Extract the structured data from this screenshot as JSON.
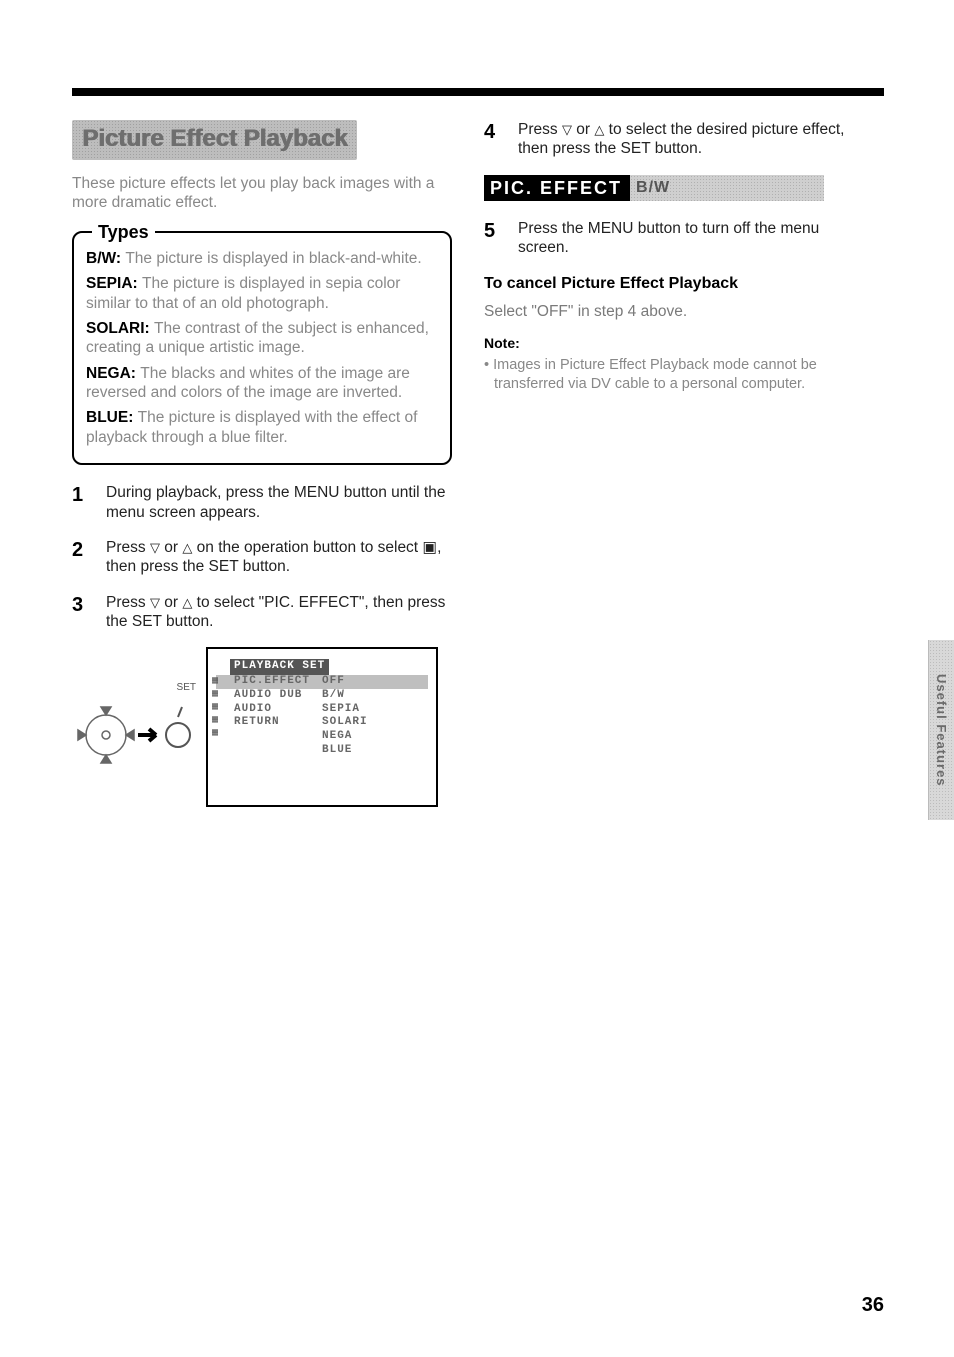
{
  "section_title": "Picture Effect Playback",
  "intro": "These picture effects let you play back images with a more dramatic effect.",
  "types_label": "Types",
  "types": [
    {
      "name": "B/W:",
      "desc": "The picture is displayed in black-and-white."
    },
    {
      "name": "SEPIA:",
      "desc": "The picture is displayed in sepia color similar to that of an old photograph."
    },
    {
      "name": "SOLARI:",
      "desc": "The contrast of the subject is enhanced, creating a unique artistic image."
    },
    {
      "name": "NEGA:",
      "desc": "The blacks and whites of the image are reversed and colors of the image are inverted."
    },
    {
      "name": "BLUE:",
      "desc": "The picture is displayed with the effect of playback through a blue filter."
    }
  ],
  "steps_left": [
    {
      "n": "1",
      "text": "During playback, press the MENU button until the menu screen appears."
    },
    {
      "n": "2",
      "text_a": "Press ",
      "text_b": " or ",
      "text_c": " on the operation button to select ▣, then press the SET button."
    },
    {
      "n": "3",
      "text_a": "Press ",
      "text_b": " or ",
      "text_c": " to select \"PIC. EFFECT\", then press the SET button."
    }
  ],
  "menu": {
    "title": "PLAYBACK SET",
    "rows": [
      {
        "left": "PIC.EFFECT",
        "right": "OFF",
        "hl": true
      },
      {
        "left": "AUDIO DUB",
        "right": "B/W"
      },
      {
        "left": "AUDIO",
        "right": "SEPIA"
      },
      {
        "left": "RETURN",
        "right": "SOLARI"
      },
      {
        "left": "",
        "right": "NEGA"
      },
      {
        "left": "",
        "right": "BLUE"
      }
    ]
  },
  "joystick_label": "SET",
  "steps_right": [
    {
      "n": "4",
      "text_a": "Press ",
      "text_b": " or ",
      "text_c": " to select the desired picture effect, then press the SET button."
    },
    {
      "n": "5",
      "text": "Press the MENU button to turn off the menu screen."
    }
  ],
  "banner": {
    "black": "PIC. EFFECT",
    "gray": "B/W"
  },
  "cancel_head": "To cancel Picture Effect Playback",
  "cancel_body": "Select \"OFF\" in step 4 above.",
  "note_head": "Note:",
  "note_body": "• Images in Picture Effect Playback mode cannot be transferred via DV cable to a personal computer.",
  "side_tab": "Useful Features",
  "page_number": "36",
  "glyphs": {
    "down": "▽",
    "up": "△"
  }
}
